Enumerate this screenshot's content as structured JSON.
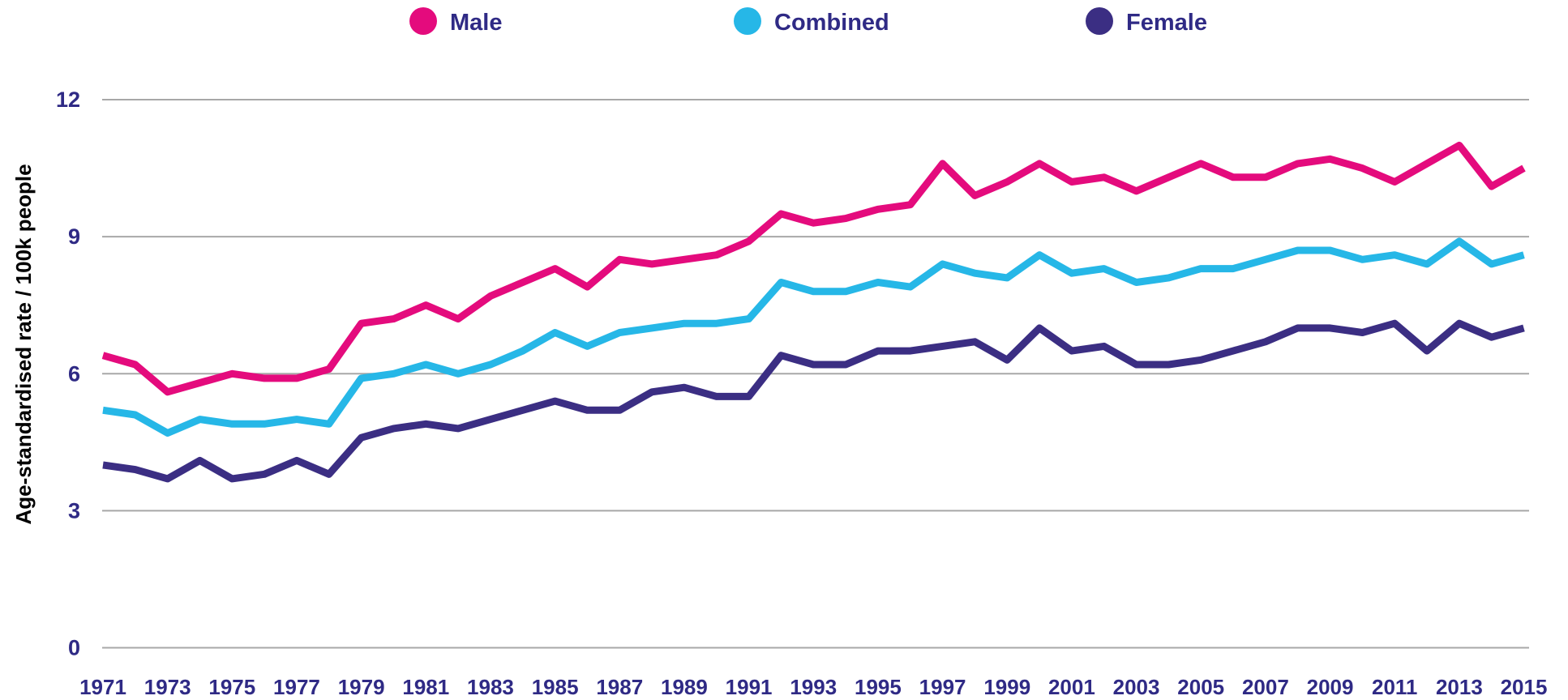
{
  "colors": {
    "male": "#e40b7d",
    "combined": "#26b7e7",
    "female": "#3b2e83",
    "text": "#2f2a85",
    "gridline": "#a8a8a8"
  },
  "legend": [
    {
      "id": "male",
      "label": "Male",
      "color": "#e40b7d"
    },
    {
      "id": "combined",
      "label": "Combined",
      "color": "#26b7e7"
    },
    {
      "id": "female",
      "label": "Female",
      "color": "#3b2e83"
    }
  ],
  "y_axis": {
    "title": "Age-standardised rate / 100k people",
    "ticks": [
      0,
      3,
      6,
      9,
      12
    ]
  },
  "x_axis": {
    "tick_years": [
      1971,
      1973,
      1975,
      1977,
      1979,
      1981,
      1983,
      1985,
      1987,
      1989,
      1991,
      1993,
      1995,
      1997,
      1999,
      2001,
      2003,
      2005,
      2007,
      2009,
      2011,
      2013,
      2015
    ]
  },
  "chart_data": {
    "type": "line",
    "title": "",
    "xlabel": "",
    "ylabel": "Age-standardised rate / 100k people",
    "ylim": [
      0,
      12
    ],
    "grid": true,
    "legend_position": "top",
    "x": [
      1971,
      1972,
      1973,
      1974,
      1975,
      1976,
      1977,
      1978,
      1979,
      1980,
      1981,
      1982,
      1983,
      1984,
      1985,
      1986,
      1987,
      1988,
      1989,
      1990,
      1991,
      1992,
      1993,
      1994,
      1995,
      1996,
      1997,
      1998,
      1999,
      2000,
      2001,
      2002,
      2003,
      2004,
      2005,
      2006,
      2007,
      2008,
      2009,
      2010,
      2011,
      2012,
      2013,
      2014,
      2015
    ],
    "series": [
      {
        "name": "Male",
        "color": "#e40b7d",
        "values": [
          6.4,
          6.2,
          5.6,
          5.8,
          6.0,
          5.9,
          5.9,
          6.1,
          7.1,
          7.2,
          7.5,
          7.2,
          7.7,
          8.0,
          8.3,
          7.9,
          8.5,
          8.4,
          8.5,
          8.6,
          8.9,
          9.5,
          9.3,
          9.4,
          9.6,
          9.7,
          10.6,
          9.9,
          10.2,
          10.6,
          10.2,
          10.3,
          10.0,
          10.3,
          10.6,
          10.3,
          10.3,
          10.6,
          10.7,
          10.5,
          10.2,
          10.6,
          11.0,
          10.1,
          10.5
        ]
      },
      {
        "name": "Combined",
        "color": "#26b7e7",
        "values": [
          5.2,
          5.1,
          4.7,
          5.0,
          4.9,
          4.9,
          5.0,
          4.9,
          5.9,
          6.0,
          6.2,
          6.0,
          6.2,
          6.5,
          6.9,
          6.6,
          6.9,
          7.0,
          7.1,
          7.1,
          7.2,
          8.0,
          7.8,
          7.8,
          8.0,
          7.9,
          8.4,
          8.2,
          8.1,
          8.6,
          8.2,
          8.3,
          8.0,
          8.1,
          8.3,
          8.3,
          8.5,
          8.7,
          8.7,
          8.5,
          8.6,
          8.4,
          8.9,
          8.4,
          8.6
        ]
      },
      {
        "name": "Female",
        "color": "#3b2e83",
        "values": [
          4.0,
          3.9,
          3.7,
          4.1,
          3.7,
          3.8,
          4.1,
          3.8,
          4.6,
          4.8,
          4.9,
          4.8,
          5.0,
          5.2,
          5.4,
          5.2,
          5.2,
          5.6,
          5.7,
          5.5,
          5.5,
          6.4,
          6.2,
          6.2,
          6.5,
          6.5,
          6.6,
          6.7,
          6.3,
          7.0,
          6.5,
          6.6,
          6.2,
          6.2,
          6.3,
          6.5,
          6.7,
          7.0,
          7.0,
          6.9,
          7.1,
          6.5,
          7.1,
          6.8,
          7.0
        ]
      }
    ]
  }
}
